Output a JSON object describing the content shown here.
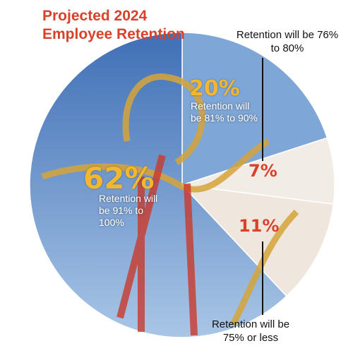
{
  "chart_data": {
    "type": "pie",
    "title": "Projected 2024 Employee Retention",
    "categories": [
      "Retention will be 81% to 90%",
      "Retention will be 76% to 80%",
      "Retention will be 75% or less",
      "Retention will be 91% to 100%"
    ],
    "values": [
      20,
      7,
      11,
      62
    ],
    "value_labels": [
      "20%",
      "7%",
      "11%",
      "62%"
    ],
    "colors": [
      "#7ea6d6",
      "#f1ece6",
      "#efe7de",
      "#5f8fcb"
    ],
    "label_colors": [
      "#f2b630",
      "#d9412b",
      "#d9412b",
      "#f2b630"
    ]
  }
}
